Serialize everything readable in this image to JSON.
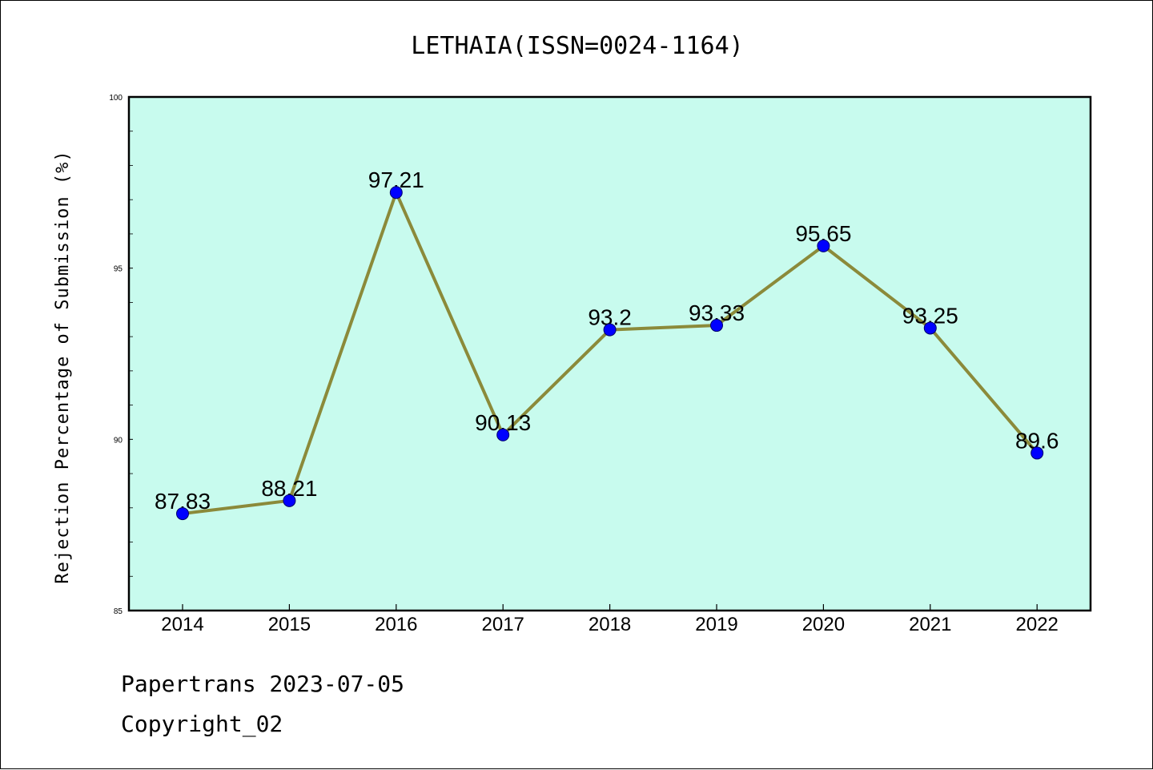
{
  "chart_data": {
    "type": "line",
    "title": "LETHAIA(ISSN=0024-1164)",
    "ylabel": "Rejection Percentage of Submission (%)",
    "xlabel": "",
    "categories": [
      "2014",
      "2015",
      "2016",
      "2017",
      "2018",
      "2019",
      "2020",
      "2021",
      "2022"
    ],
    "series": [
      {
        "values": [
          87.83,
          88.21,
          97.21,
          90.13,
          93.2,
          93.33,
          95.65,
          93.25,
          89.6
        ],
        "labels": [
          "87.83",
          "88.21",
          "97.21",
          "90.13",
          "93.2",
          "93.33",
          "95.65",
          "93.25",
          "89.6"
        ]
      }
    ],
    "ylim": [
      85,
      100
    ],
    "yticks": [
      "85",
      "90",
      "95",
      "100"
    ],
    "grid": false,
    "legend": "none",
    "colors": {
      "plot_background": "#c8fbee",
      "line": "#8b8a3a",
      "marker": "#0000ff"
    }
  },
  "footer": {
    "line1": "Papertrans 2023-07-05",
    "line2": "Copyright_02"
  }
}
